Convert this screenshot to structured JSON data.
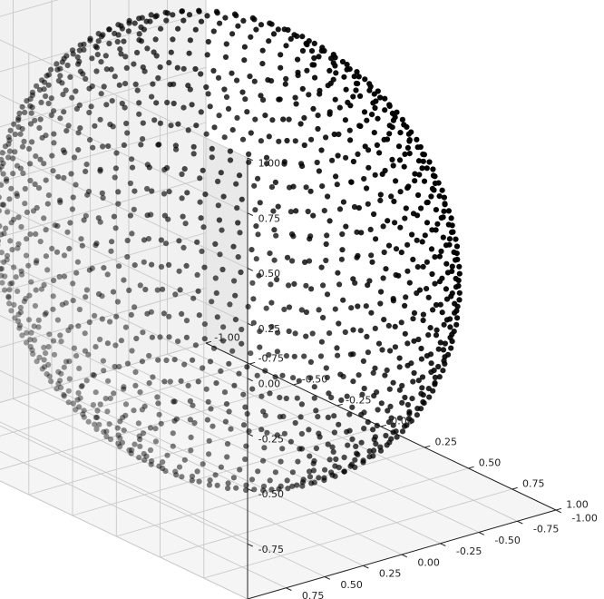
{
  "chart_data": {
    "type": "scatter",
    "projection": "3d",
    "title": "",
    "xlabel": "",
    "ylabel": "",
    "zlabel": "",
    "xlim": [
      -1.0,
      1.0
    ],
    "ylim": [
      -1.0,
      1.0
    ],
    "zlim": [
      -1.0,
      1.0
    ],
    "x_ticks": [
      "-1.00",
      "-0.75",
      "-0.50",
      "-0.25",
      "0.00",
      "0.25",
      "0.50",
      "0.75",
      "1.00"
    ],
    "y_ticks": [
      "-1.00",
      "-0.75",
      "-0.50",
      "-0.25",
      "0.00",
      "0.25",
      "0.50",
      "0.75",
      "1.00"
    ],
    "z_ticks": [
      "-1.00",
      "-0.75",
      "-0.50",
      "-0.25",
      "0.00",
      "0.25",
      "0.50",
      "0.75",
      "1.00"
    ],
    "grid": true,
    "series": [
      {
        "marker_color": "#000000",
        "points": {
          "shape": "unit sphere lattice",
          "radius": 1.0,
          "center": [
            0,
            0,
            0
          ],
          "latitude_rings": 24,
          "latitude_range_deg": [
            -68,
            68
          ],
          "approximate_count": 1200
        }
      }
    ]
  },
  "colors": {
    "pane_back": "#e9e9e9",
    "pane_side": "#f1f1f1",
    "pane_floor": "#f5f5f5",
    "grid": "#c8c8c8",
    "marker": "#000000"
  }
}
